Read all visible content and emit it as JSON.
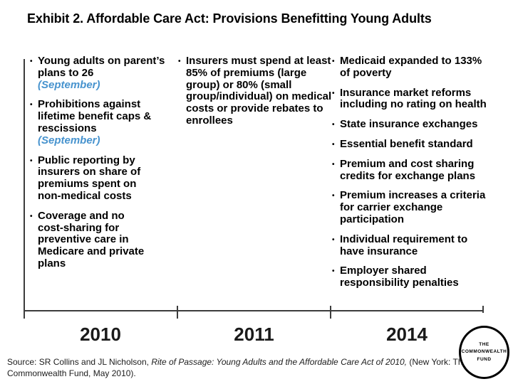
{
  "title": "Exhibit 2. Affordable Care Act: Provisions Benefitting Young Adults",
  "colors": {
    "background": "#ffffff",
    "title_text": "#000000",
    "body_text": "#000000",
    "accent_blue": "#4793ce",
    "timeline_line": "#3c3c3c"
  },
  "columns": [
    {
      "year": "2010",
      "items": [
        {
          "text": "Young adults on parent’s plans to 26",
          "note": "(September)"
        },
        {
          "text": "Prohibitions against lifetime benefit caps & rescissions",
          "note": "(September)"
        },
        {
          "text": "Public reporting by insurers on share of premiums spent on non‑medical costs"
        },
        {
          "text": "Coverage and no cost‑sharing for preventive care in Medicare and private plans"
        }
      ]
    },
    {
      "year": "2011",
      "items": [
        {
          "text": "Insurers must spend at least 85% of premiums (large group) or 80% (small group/individual) on medical costs or provide rebates to enrollees"
        }
      ]
    },
    {
      "year": "2014",
      "items": [
        {
          "text": "Medicaid expanded to 133% of poverty"
        },
        {
          "text": "Insurance market reforms including no rating on health"
        },
        {
          "text": "State insurance exchanges"
        },
        {
          "text": "Essential benefit standard"
        },
        {
          "text": "Premium and cost sharing credits for exchange plans"
        },
        {
          "text": "Premium increases a criteria for carrier exchange participation"
        },
        {
          "text": "Individual requirement to have insurance"
        },
        {
          "text": "Employer shared responsibility penalties"
        }
      ]
    }
  ],
  "source": {
    "prefix": "Source: SR Collins and JL Nicholson, ",
    "italic": "Rite of Passage: Young Adults and the Affordable Care Act of 2010,",
    "suffix": " (New York: The Commonwealth Fund, May 2010)."
  },
  "logo": {
    "line1": "THE",
    "line2": "COMMONWEALTH",
    "line3": "FUND"
  }
}
